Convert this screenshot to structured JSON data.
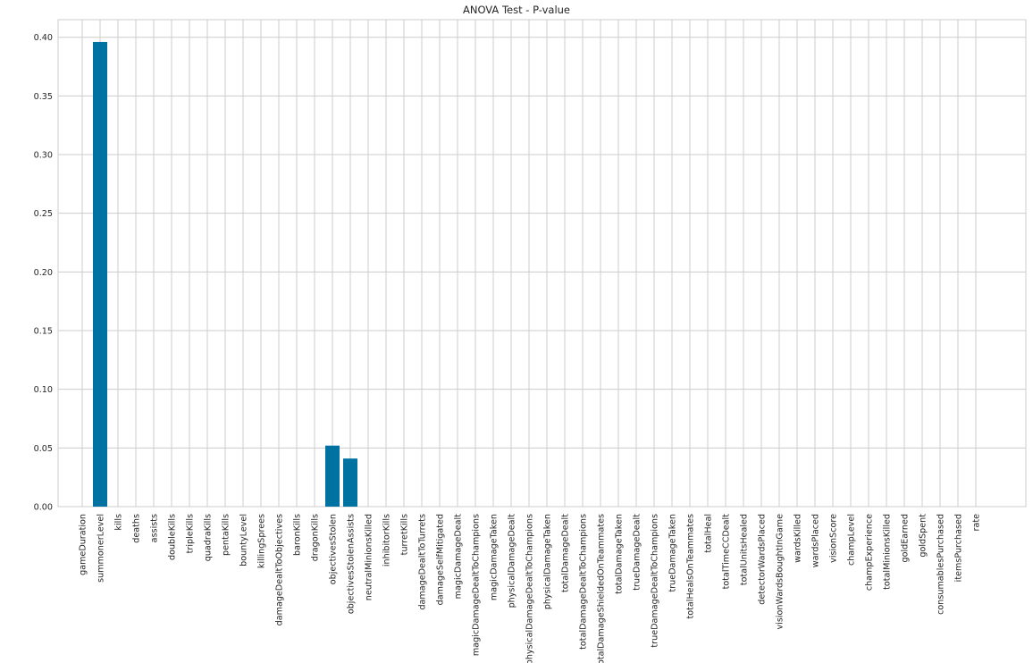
{
  "chart_data": {
    "type": "bar",
    "title": "ANOVA Test - P-value",
    "xlabel": "",
    "ylabel": "",
    "ylim": [
      0,
      0.415
    ],
    "yticks": [
      "0.00",
      "0.05",
      "0.10",
      "0.15",
      "0.20",
      "0.25",
      "0.30",
      "0.35",
      "0.40"
    ],
    "grid": true,
    "bar_color": "#0072a2",
    "categories": [
      "gameDuration",
      "summonerLevel",
      "kills",
      "deaths",
      "assists",
      "doubleKills",
      "tripleKills",
      "quadraKills",
      "pentaKills",
      "bountyLevel",
      "killingSprees",
      "damageDealtToObjectives",
      "baronKills",
      "dragonKills",
      "objectivesStolen",
      "objectivesStolenAssists",
      "neutralMinionsKilled",
      "inhibitorKills",
      "turretKills",
      "damageDealtToTurrets",
      "damageSelfMitigated",
      "magicDamageDealt",
      "magicDamageDealtToChampions",
      "magicDamageTaken",
      "physicalDamageDealt",
      "physicalDamageDealtToChampions",
      "physicalDamageTaken",
      "totalDamageDealt",
      "totalDamageDealtToChampions",
      "totalDamageShieldedOnTeammates",
      "totalDamageTaken",
      "trueDamageDealt",
      "trueDamageDealtToChampions",
      "trueDamageTaken",
      "totalHealsOnTeammates",
      "totalHeal",
      "totalTimeCCDealt",
      "totalUnitsHealed",
      "detectorWardsPlaced",
      "visionWardsBoughtInGame",
      "wardsKilled",
      "wardsPlaced",
      "visionScore",
      "champLevel",
      "champExperience",
      "totalMinionsKilled",
      "goldEarned",
      "goldSpent",
      "consumablesPurchased",
      "itemsPurchased",
      "rate"
    ],
    "values": [
      0,
      0.396,
      0,
      0,
      0,
      0,
      0,
      0,
      0,
      0,
      0,
      0,
      0,
      0,
      0.052,
      0.041,
      0,
      0,
      0,
      0,
      0,
      0,
      0,
      0,
      0,
      0,
      0,
      0,
      0,
      0,
      0,
      0,
      0,
      0,
      0,
      0,
      0,
      0,
      0,
      0,
      0,
      0,
      0,
      0,
      0,
      0,
      0,
      0,
      0,
      0,
      0
    ]
  }
}
